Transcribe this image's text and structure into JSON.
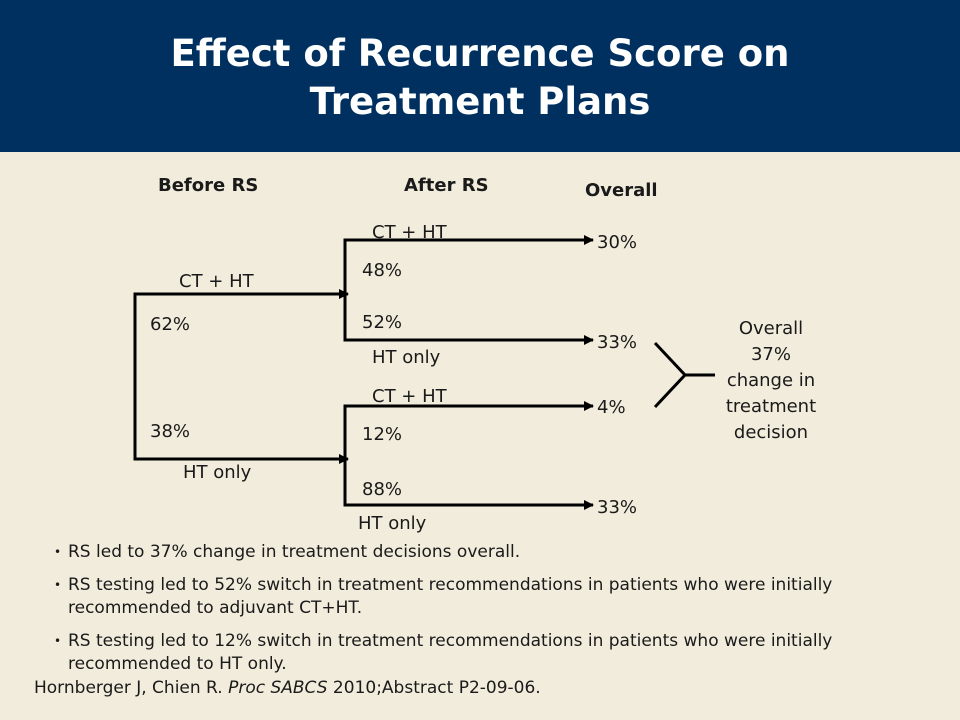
{
  "slide": {
    "title": "Effect of Recurrence Score on Treatment Plans",
    "accent_color": "#00305f",
    "background_color": "#f1ecdc"
  },
  "diagram": {
    "headers": {
      "before": "Before RS",
      "after": "After RS",
      "overall": "Overall"
    },
    "before_rs": {
      "ct_ht_label": "CT + HT",
      "ct_ht_pct": "62%",
      "ht_only_label": "HT only",
      "ht_only_pct": "38%"
    },
    "after_rs_from_ct_ht": {
      "ct_ht_label": "CT + HT",
      "ct_ht_pct": "48%",
      "ht_only_label": "HT only",
      "ht_only_pct": "52%"
    },
    "after_rs_from_ht_only": {
      "ct_ht_label": "CT + HT",
      "ct_ht_pct": "12%",
      "ht_only_label": "HT only",
      "ht_only_pct": "88%"
    },
    "overall_values": [
      "30%",
      "33%",
      "4%",
      "33%"
    ],
    "change_summary": [
      "Overall",
      "37%",
      "change in",
      "treatment",
      "decision"
    ]
  },
  "bullets": [
    "RS led to 37% change in treatment decisions overall.",
    "RS testing led to 52% switch in treatment recommendations in patients who were initially recommended to adjuvant CT+HT.",
    "RS testing led to 12% switch in treatment recommendations in patients who were initially recommended to HT only."
  ],
  "citation": {
    "authors": "Hornberger J, Chien R. ",
    "journal": "Proc SABCS",
    "rest": " 2010;Abstract P2-09-06."
  }
}
